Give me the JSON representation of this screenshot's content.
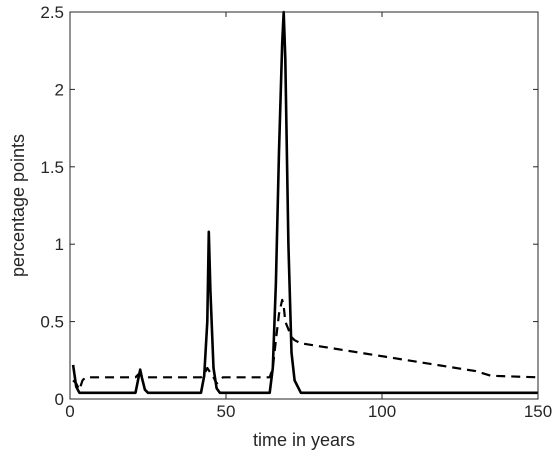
{
  "chart_data": {
    "type": "line",
    "title": "",
    "xlabel": "time in years",
    "ylabel": "percentage points",
    "xlim": [
      0,
      150
    ],
    "ylim": [
      0,
      2.5
    ],
    "xticks": [
      0,
      50,
      100,
      150
    ],
    "xtick_labels": [
      "0",
      "50",
      "100",
      "150"
    ],
    "yticks": [
      0,
      0.5,
      1,
      1.5,
      2,
      2.5
    ],
    "ytick_labels": [
      "0",
      "0.5",
      "1",
      "1.5",
      "2",
      "2.5"
    ],
    "grid": false,
    "legend": "none",
    "series": [
      {
        "style": "solid",
        "color": "#000000",
        "x": [
          1,
          2,
          3,
          4,
          5,
          21,
          22,
          22.5,
          23,
          24,
          25,
          42,
          43,
          44,
          44.5,
          45,
          46,
          47,
          48,
          64,
          65,
          66,
          67,
          68,
          68.5,
          69,
          70,
          71,
          72,
          74,
          150
        ],
        "y": [
          0.22,
          0.08,
          0.04,
          0.04,
          0.04,
          0.04,
          0.14,
          0.19,
          0.14,
          0.06,
          0.04,
          0.04,
          0.15,
          0.5,
          1.08,
          0.7,
          0.2,
          0.07,
          0.04,
          0.04,
          0.2,
          0.75,
          1.6,
          2.3,
          2.5,
          2.2,
          1.0,
          0.3,
          0.12,
          0.04,
          0.04
        ]
      },
      {
        "style": "dashed",
        "color": "#000000",
        "x": [
          1,
          2,
          3,
          4,
          5,
          21,
          22,
          23,
          24,
          25,
          42,
          43,
          44,
          45,
          46,
          47,
          48,
          49,
          64,
          65,
          66,
          67,
          68,
          68.5,
          69,
          70,
          71,
          72,
          74,
          130,
          135,
          150
        ],
        "y": [
          0.12,
          0.1,
          0.06,
          0.12,
          0.14,
          0.14,
          0.16,
          0.15,
          0.14,
          0.14,
          0.14,
          0.16,
          0.2,
          0.17,
          0.14,
          0.1,
          0.12,
          0.14,
          0.14,
          0.2,
          0.38,
          0.55,
          0.64,
          0.6,
          0.5,
          0.45,
          0.4,
          0.38,
          0.36,
          0.18,
          0.15,
          0.14
        ]
      }
    ]
  }
}
